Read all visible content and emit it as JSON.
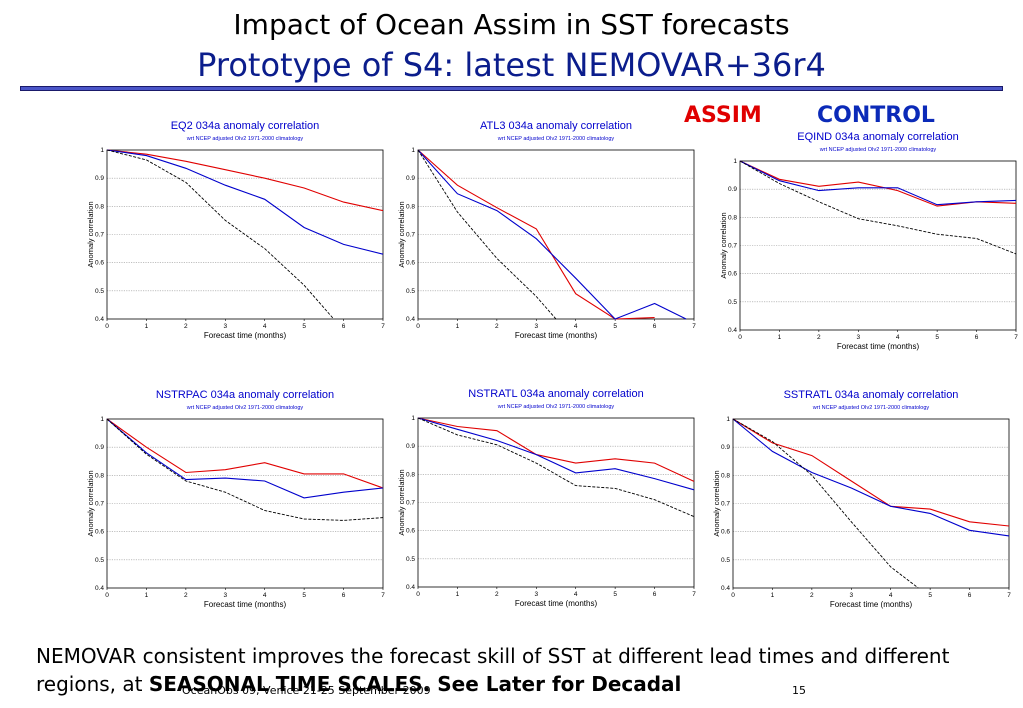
{
  "slide": {
    "title_line1": "Impact of Ocean Assim in SST forecasts",
    "title_line2": "Prototype of S4: latest NEMOVAR+36r4",
    "legend_assim": "ASSIM",
    "legend_control": "CONTROL",
    "body_text_plain": "NEMOVAR consistent improves the forecast skill of SST at different lead times and different regions, at ",
    "body_text_bold": "SEASONAL TIME SCALES.  See Later for Decadal",
    "footer_note": "OceanObs 09, Venice 21-25 September 2009",
    "page_number": "15"
  },
  "colors": {
    "assim": "#e00000",
    "control": "#0000cc",
    "persistence": "#000000",
    "title_blue": "#0b1d8c",
    "chart_title": "#0000cc"
  },
  "chart_data": [
    {
      "type": "line",
      "title": "EQ2 034a anomaly correlation",
      "subtitle": "wrt NCEP adjusted OIv2 1971-2000 climatology",
      "xlabel": "Forecast time (months)",
      "ylabel": "Anomaly correlation",
      "xlim": [
        0,
        7
      ],
      "ylim": [
        0.4,
        1
      ],
      "x_ticks": [
        "0",
        "1",
        "2",
        "3",
        "4",
        "5",
        "6",
        "7"
      ],
      "y_ticks": [
        "0.4",
        "0.5",
        "0.6",
        "0.7",
        "0.8",
        "0.9",
        "1"
      ],
      "grid": true,
      "series": [
        {
          "role": "assim",
          "style": "solid",
          "x": [
            0,
            1,
            2,
            3,
            4,
            5,
            6,
            7
          ],
          "y": [
            1.0,
            0.985,
            0.96,
            0.93,
            0.9,
            0.865,
            0.815,
            0.785
          ]
        },
        {
          "role": "control",
          "style": "solid",
          "x": [
            0,
            1,
            2,
            3,
            4,
            5,
            6,
            7
          ],
          "y": [
            1.0,
            0.98,
            0.935,
            0.875,
            0.825,
            0.725,
            0.665,
            0.63
          ]
        },
        {
          "role": "persistence",
          "style": "dashed",
          "x": [
            0,
            1,
            2,
            3,
            4,
            5,
            5.75
          ],
          "y": [
            1.0,
            0.965,
            0.885,
            0.75,
            0.65,
            0.52,
            0.4
          ]
        }
      ]
    },
    {
      "type": "line",
      "title": "ATL3 034a anomaly correlation",
      "subtitle": "wrt NCEP adjusted OIv2 1971-2000 climatology",
      "xlabel": "Forecast time (months)",
      "ylabel": "Anomaly correlation",
      "xlim": [
        0,
        7
      ],
      "ylim": [
        0.4,
        1
      ],
      "x_ticks": [
        "0",
        "1",
        "2",
        "3",
        "4",
        "5",
        "6",
        "7"
      ],
      "y_ticks": [
        "0.4",
        "0.5",
        "0.6",
        "0.7",
        "0.8",
        "0.9",
        "1"
      ],
      "grid": true,
      "series": [
        {
          "role": "assim",
          "style": "solid",
          "x": [
            0,
            1,
            2,
            3,
            4,
            5,
            6
          ],
          "y": [
            1.0,
            0.875,
            0.795,
            0.72,
            0.49,
            0.4,
            0.405
          ]
        },
        {
          "role": "control",
          "style": "solid",
          "x": [
            0,
            1,
            2,
            3,
            4,
            5,
            6,
            6.8
          ],
          "y": [
            1.0,
            0.845,
            0.785,
            0.685,
            0.545,
            0.4,
            0.455,
            0.4
          ]
        },
        {
          "role": "persistence",
          "style": "dashed",
          "x": [
            0,
            1,
            2,
            3,
            3.5
          ],
          "y": [
            1.0,
            0.78,
            0.615,
            0.48,
            0.4
          ]
        }
      ]
    },
    {
      "type": "line",
      "title": "EQIND 034a anomaly correlation",
      "subtitle": "wrt NCEP adjusted OIv2 1971-2000 climatology",
      "xlabel": "Forecast time (months)",
      "ylabel": "Anomaly correlation",
      "xlim": [
        0,
        7
      ],
      "ylim": [
        0.4,
        1
      ],
      "x_ticks": [
        "0",
        "1",
        "2",
        "3",
        "4",
        "5",
        "6",
        "7"
      ],
      "y_ticks": [
        "0.4",
        "0.5",
        "0.6",
        "0.7",
        "0.8",
        "0.9",
        "1"
      ],
      "grid": true,
      "series": [
        {
          "role": "assim",
          "style": "solid",
          "x": [
            0,
            1,
            2,
            3,
            4,
            5,
            6,
            7
          ],
          "y": [
            1.0,
            0.935,
            0.91,
            0.925,
            0.895,
            0.84,
            0.855,
            0.85
          ]
        },
        {
          "role": "control",
          "style": "solid",
          "x": [
            0,
            1,
            2,
            3,
            4,
            5,
            6,
            7
          ],
          "y": [
            1.0,
            0.93,
            0.895,
            0.905,
            0.905,
            0.845,
            0.855,
            0.86
          ]
        },
        {
          "role": "persistence",
          "style": "dashed",
          "x": [
            0,
            1,
            2,
            3,
            4,
            5,
            6,
            7
          ],
          "y": [
            1.0,
            0.92,
            0.855,
            0.795,
            0.77,
            0.74,
            0.725,
            0.67
          ]
        }
      ]
    },
    {
      "type": "line",
      "title": "NSTRPAC 034a anomaly correlation",
      "subtitle": "wrt NCEP adjusted OIv2 1971-2000 climatology",
      "xlabel": "Forecast time (months)",
      "ylabel": "Anomaly correlation",
      "xlim": [
        0,
        7
      ],
      "ylim": [
        0.4,
        1
      ],
      "x_ticks": [
        "0",
        "1",
        "2",
        "3",
        "4",
        "5",
        "6",
        "7"
      ],
      "y_ticks": [
        "0.4",
        "0.5",
        "0.6",
        "0.7",
        "0.8",
        "0.9",
        "1"
      ],
      "grid": true,
      "series": [
        {
          "role": "assim",
          "style": "solid",
          "x": [
            0,
            1,
            2,
            3,
            4,
            5,
            6,
            7
          ],
          "y": [
            1.0,
            0.9,
            0.81,
            0.82,
            0.845,
            0.805,
            0.805,
            0.755
          ]
        },
        {
          "role": "control",
          "style": "solid",
          "x": [
            0,
            1,
            2,
            3,
            4,
            5,
            6,
            7
          ],
          "y": [
            1.0,
            0.88,
            0.785,
            0.79,
            0.78,
            0.72,
            0.74,
            0.755
          ]
        },
        {
          "role": "persistence",
          "style": "dashed",
          "x": [
            0,
            1,
            2,
            3,
            4,
            5,
            6,
            7
          ],
          "y": [
            1.0,
            0.875,
            0.78,
            0.74,
            0.675,
            0.645,
            0.64,
            0.65
          ]
        }
      ]
    },
    {
      "type": "line",
      "title": "NSTRATL 034a anomaly correlation",
      "subtitle": "wrt NCEP adjusted OIv2 1971-2000 climatology",
      "xlabel": "Forecast time (months)",
      "ylabel": "Anomaly correlation",
      "xlim": [
        0,
        7
      ],
      "ylim": [
        0.4,
        1
      ],
      "x_ticks": [
        "0",
        "1",
        "2",
        "3",
        "4",
        "5",
        "6",
        "7"
      ],
      "y_ticks": [
        "0.4",
        "0.5",
        "0.6",
        "0.7",
        "0.8",
        "0.9",
        "1"
      ],
      "grid": true,
      "series": [
        {
          "role": "assim",
          "style": "solid",
          "x": [
            0,
            1,
            2,
            3,
            4,
            5,
            6,
            7
          ],
          "y": [
            1.0,
            0.97,
            0.955,
            0.87,
            0.84,
            0.855,
            0.84,
            0.775
          ]
        },
        {
          "role": "control",
          "style": "solid",
          "x": [
            0,
            1,
            2,
            3,
            4,
            5,
            6,
            7
          ],
          "y": [
            1.0,
            0.96,
            0.92,
            0.87,
            0.805,
            0.82,
            0.785,
            0.745
          ]
        },
        {
          "role": "persistence",
          "style": "dashed",
          "x": [
            0,
            1,
            2,
            3,
            4,
            5,
            6,
            7
          ],
          "y": [
            1.0,
            0.94,
            0.905,
            0.84,
            0.76,
            0.75,
            0.71,
            0.65
          ]
        }
      ]
    },
    {
      "type": "line",
      "title": "SSTRATL 034a anomaly correlation",
      "subtitle": "wrt NCEP adjusted OIv2 1971-2000 climatology",
      "xlabel": "Forecast time (months)",
      "ylabel": "Anomaly correlation",
      "xlim": [
        0,
        7
      ],
      "ylim": [
        0.4,
        1
      ],
      "x_ticks": [
        "0",
        "1",
        "2",
        "3",
        "4",
        "5",
        "6",
        "7"
      ],
      "y_ticks": [
        "0.4",
        "0.5",
        "0.6",
        "0.7",
        "0.8",
        "0.9",
        "1"
      ],
      "grid": true,
      "series": [
        {
          "role": "assim",
          "style": "solid",
          "x": [
            0,
            1,
            2,
            3,
            4,
            5,
            6,
            7
          ],
          "y": [
            1.0,
            0.915,
            0.87,
            0.78,
            0.69,
            0.68,
            0.635,
            0.62
          ]
        },
        {
          "role": "control",
          "style": "solid",
          "x": [
            0,
            1,
            2,
            3,
            4,
            5,
            6,
            7
          ],
          "y": [
            1.0,
            0.885,
            0.81,
            0.755,
            0.69,
            0.665,
            0.605,
            0.585
          ]
        },
        {
          "role": "persistence",
          "style": "dashed",
          "x": [
            0,
            1,
            2,
            3,
            4,
            4.7
          ],
          "y": [
            1.0,
            0.92,
            0.8,
            0.635,
            0.475,
            0.4
          ]
        }
      ]
    }
  ]
}
